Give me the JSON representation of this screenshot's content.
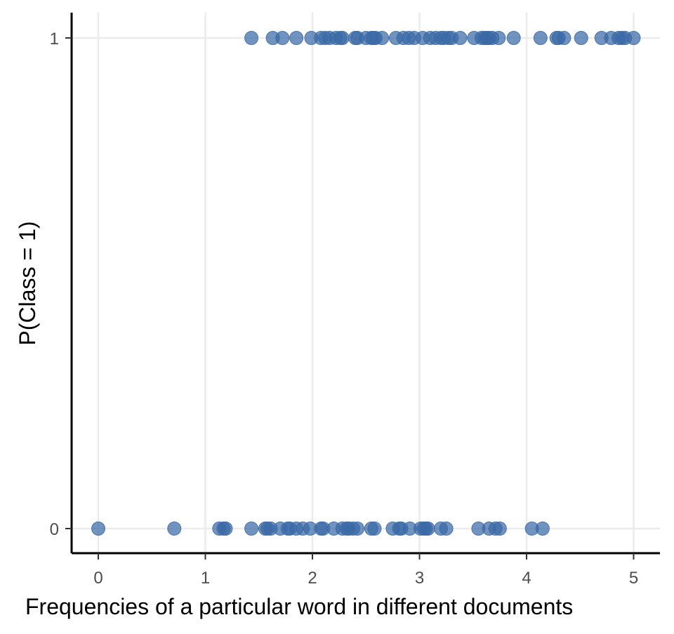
{
  "chart_data": {
    "type": "scatter",
    "title": "",
    "xlabel": "Frequencies of a particular word in different documents",
    "ylabel": "P(Class = 1)",
    "xlim": [
      -0.25,
      5.25
    ],
    "ylim": [
      -0.05,
      1.05
    ],
    "x_ticks": [
      "0",
      "1",
      "2",
      "3",
      "4",
      "5"
    ],
    "y_ticks": [
      "0",
      "1"
    ],
    "grid": true,
    "legend": "none",
    "point_color": "#3a69a6",
    "series": [
      {
        "y": 1,
        "x": [
          1.43,
          1.63,
          1.72,
          1.85,
          1.99,
          2.08,
          2.12,
          2.16,
          2.22,
          2.26,
          2.28,
          2.4,
          2.42,
          2.5,
          2.55,
          2.57,
          2.59,
          2.65,
          2.78,
          2.85,
          2.9,
          2.95,
          3.03,
          3.1,
          3.15,
          3.2,
          3.23,
          3.27,
          3.3,
          3.38,
          3.51,
          3.58,
          3.61,
          3.63,
          3.65,
          3.68,
          3.74,
          3.88,
          4.13,
          4.28,
          4.3,
          4.35,
          4.51,
          4.7,
          4.79,
          4.86,
          4.89,
          4.92,
          5.0
        ]
      },
      {
        "y": 0,
        "x": [
          0.0,
          0.71,
          1.13,
          1.17,
          1.19,
          1.43,
          1.56,
          1.58,
          1.61,
          1.7,
          1.77,
          1.79,
          1.85,
          1.91,
          1.98,
          2.08,
          2.1,
          2.2,
          2.28,
          2.32,
          2.34,
          2.38,
          2.42,
          2.55,
          2.58,
          2.75,
          2.81,
          2.83,
          2.91,
          3.01,
          3.04,
          3.06,
          3.08,
          3.2,
          3.25,
          3.55,
          3.65,
          3.71,
          3.75,
          4.05,
          4.15
        ]
      }
    ]
  }
}
